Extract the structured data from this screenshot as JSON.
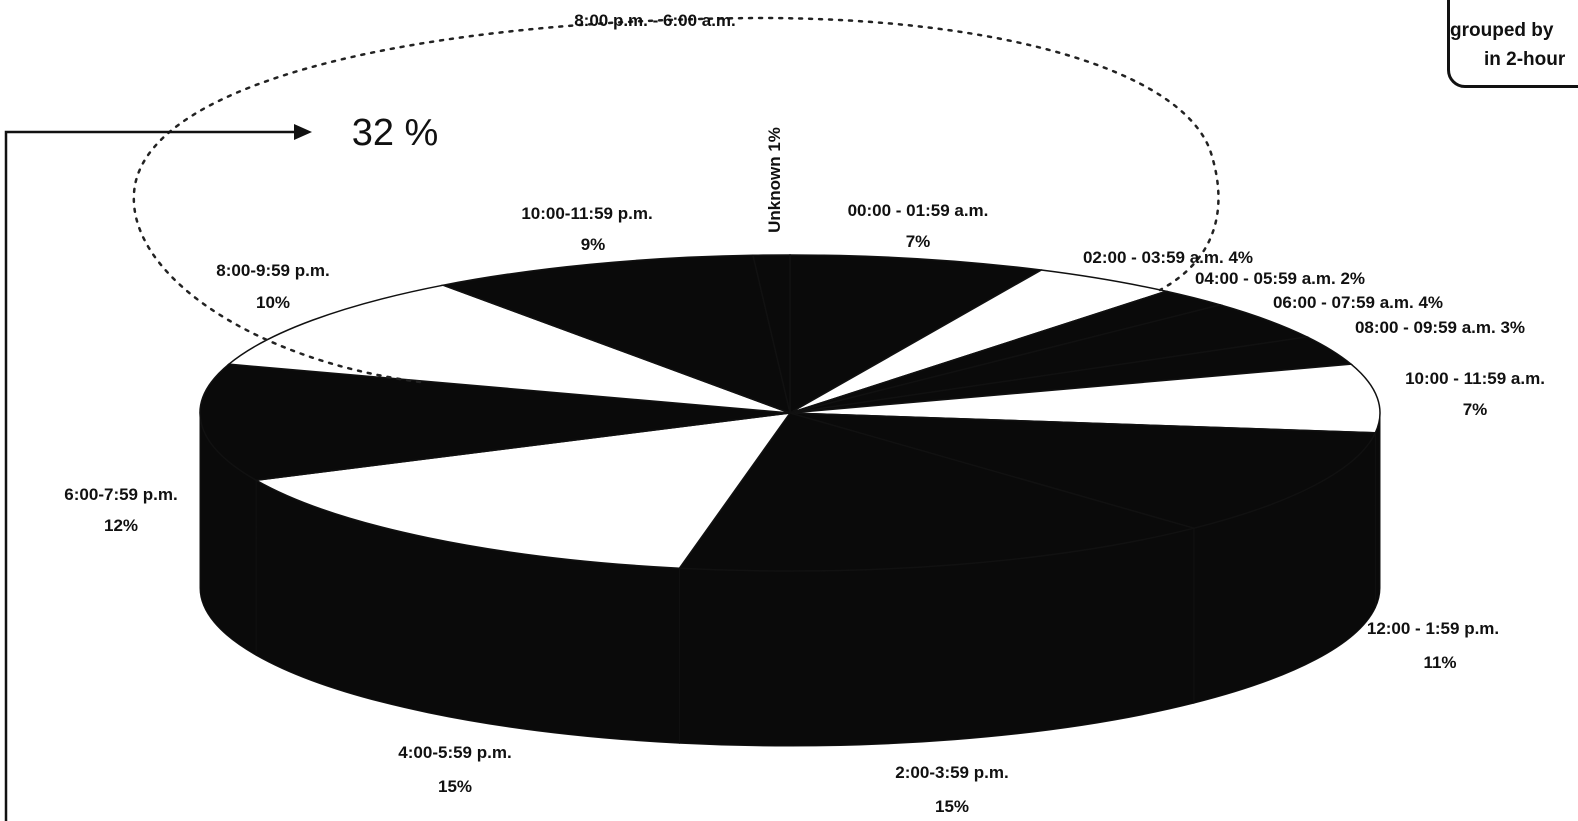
{
  "chart_data": {
    "type": "pie",
    "title": "",
    "annotation_range_label": "8:00 p.m. - 6:00 a.m.",
    "annotation_total": "32 %",
    "note_lines": [
      "grouped by",
      "in 2-hour"
    ],
    "colors": {
      "dark": "#0a0a0a",
      "light": "#ffffff",
      "outline": "#111111"
    },
    "slices": [
      {
        "label": "00:00 - 01:59 a.m.",
        "value_label": "7%",
        "value": 7,
        "fill": "dark"
      },
      {
        "label": "02:00 - 03:59 a.m. 4%",
        "value_label": "",
        "value": 4,
        "fill": "light"
      },
      {
        "label": "04:00 - 05:59 a.m. 2%",
        "value_label": "",
        "value": 2,
        "fill": "dark"
      },
      {
        "label": "06:00 - 07:59 a.m. 4%",
        "value_label": "",
        "value": 4,
        "fill": "dark"
      },
      {
        "label": "08:00 - 09:59 a.m. 3%",
        "value_label": "",
        "value": 3,
        "fill": "dark"
      },
      {
        "label": "10:00 - 11:59 a.m.",
        "value_label": "7%",
        "value": 7,
        "fill": "light"
      },
      {
        "label": "12:00 - 1:59 p.m.",
        "value_label": "11%",
        "value": 11,
        "fill": "dark"
      },
      {
        "label": "2:00-3:59 p.m.",
        "value_label": "15%",
        "value": 15,
        "fill": "dark"
      },
      {
        "label": "4:00-5:59 p.m.",
        "value_label": "15%",
        "value": 15,
        "fill": "light"
      },
      {
        "label": "6:00-7:59 p.m.",
        "value_label": "12%",
        "value": 12,
        "fill": "dark"
      },
      {
        "label": "8:00-9:59 p.m.",
        "value_label": "10%",
        "value": 10,
        "fill": "light"
      },
      {
        "label": "10:00-11:59 p.m.",
        "value_label": "9%",
        "value": 9,
        "fill": "dark"
      },
      {
        "label": "Unknown 1%",
        "value_label": "",
        "value": 1,
        "fill": "dark"
      }
    ]
  }
}
